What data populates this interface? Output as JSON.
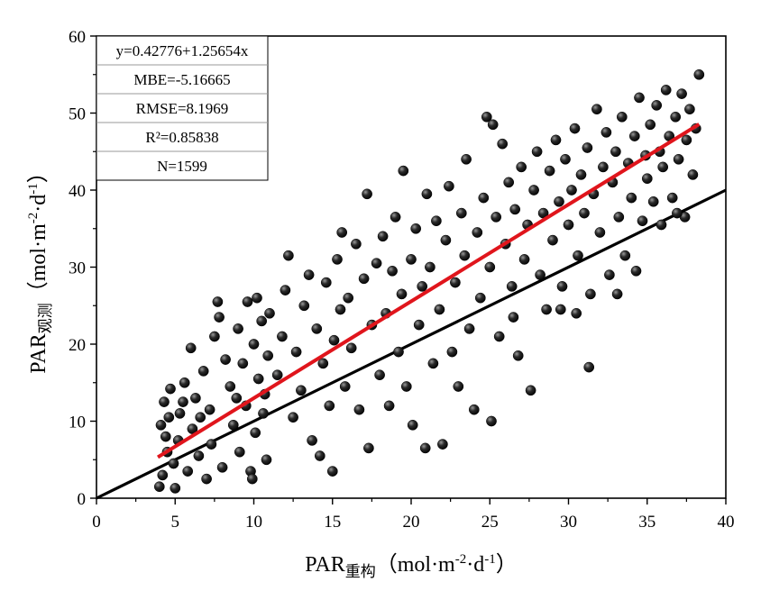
{
  "chart_data": {
    "type": "scatter",
    "title": "",
    "xlabel": {
      "main": "PAR",
      "subscript": "重构",
      "unit_open": "（mol·m",
      "unit_exp1": "-2",
      "unit_mid": "·d",
      "unit_exp2": "-1",
      "unit_close": "）"
    },
    "ylabel": {
      "main": "PAR",
      "subscript": "观测",
      "unit_open": "（mol·m",
      "unit_exp1": "-2",
      "unit_mid": "·d",
      "unit_exp2": "-1",
      "unit_close": "）"
    },
    "xlim": [
      0,
      40
    ],
    "ylim": [
      0,
      60
    ],
    "xticks": [
      "0",
      "5",
      "10",
      "15",
      "20",
      "25",
      "30",
      "35",
      "40"
    ],
    "yticks": [
      "0",
      "10",
      "20",
      "30",
      "40",
      "50",
      "60"
    ],
    "grid": false,
    "stats_box": {
      "position": "top-left",
      "lines": [
        "y=0.42776+1.25654x",
        "MBE=-5.16665",
        "RMSE=8.1969",
        "R²=0.85838",
        "N=1599"
      ]
    },
    "fit_line": {
      "intercept": 0.42776,
      "slope": 1.25654,
      "x_range": [
        3.9,
        38.3
      ],
      "color": "#e0151c"
    },
    "reference_line": {
      "intercept": 0,
      "slope": 1,
      "x_range": [
        0,
        40
      ],
      "color": "#000000"
    },
    "point_color": "#1a1a1a",
    "points": [
      [
        4.0,
        1.5
      ],
      [
        4.2,
        3.0
      ],
      [
        4.5,
        6.0
      ],
      [
        4.1,
        9.5
      ],
      [
        4.3,
        12.5
      ],
      [
        4.7,
        14.2
      ],
      [
        4.4,
        8.0
      ],
      [
        4.9,
        4.5
      ],
      [
        5.0,
        1.3
      ],
      [
        5.3,
        11.0
      ],
      [
        5.6,
        15.0
      ],
      [
        5.2,
        7.5
      ],
      [
        5.8,
        3.5
      ],
      [
        6.0,
        19.5
      ],
      [
        6.3,
        13.0
      ],
      [
        6.1,
        9.0
      ],
      [
        6.5,
        5.5
      ],
      [
        6.8,
        16.5
      ],
      [
        7.0,
        2.5
      ],
      [
        7.2,
        11.5
      ],
      [
        7.5,
        21.0
      ],
      [
        7.7,
        25.5
      ],
      [
        7.8,
        23.5
      ],
      [
        7.3,
        7.0
      ],
      [
        8.0,
        4.0
      ],
      [
        8.2,
        18.0
      ],
      [
        8.5,
        14.5
      ],
      [
        8.7,
        9.5
      ],
      [
        9.0,
        22.0
      ],
      [
        9.1,
        6.0
      ],
      [
        9.3,
        17.5
      ],
      [
        9.5,
        12.0
      ],
      [
        9.6,
        25.5
      ],
      [
        9.8,
        3.5
      ],
      [
        10.0,
        20.0
      ],
      [
        10.1,
        8.5
      ],
      [
        10.3,
        15.5
      ],
      [
        10.5,
        23.0
      ],
      [
        10.6,
        11.0
      ],
      [
        10.8,
        5.0
      ],
      [
        10.9,
        18.5
      ],
      [
        10.7,
        13.5
      ],
      [
        10.2,
        26.0
      ],
      [
        9.9,
        2.5
      ],
      [
        8.9,
        13.0
      ],
      [
        6.6,
        10.5
      ],
      [
        5.5,
        12.5
      ],
      [
        4.6,
        10.5
      ],
      [
        11.0,
        24.0
      ],
      [
        11.5,
        16.0
      ],
      [
        11.8,
        21.0
      ],
      [
        12.0,
        27.0
      ],
      [
        12.2,
        31.5
      ],
      [
        12.5,
        10.5
      ],
      [
        12.7,
        19.0
      ],
      [
        13.0,
        14.0
      ],
      [
        13.2,
        25.0
      ],
      [
        13.5,
        29.0
      ],
      [
        13.7,
        7.5
      ],
      [
        14.0,
        22.0
      ],
      [
        14.2,
        5.5
      ],
      [
        14.4,
        17.5
      ],
      [
        14.6,
        28.0
      ],
      [
        14.8,
        12.0
      ],
      [
        15.0,
        3.5
      ],
      [
        15.1,
        20.5
      ],
      [
        15.3,
        31.0
      ],
      [
        15.5,
        24.5
      ],
      [
        15.6,
        34.5
      ],
      [
        15.8,
        14.5
      ],
      [
        16.0,
        26.0
      ],
      [
        16.2,
        19.5
      ],
      [
        16.5,
        33.0
      ],
      [
        16.7,
        11.5
      ],
      [
        17.0,
        28.5
      ],
      [
        17.2,
        39.5
      ],
      [
        17.3,
        6.5
      ],
      [
        17.5,
        22.5
      ],
      [
        17.8,
        30.5
      ],
      [
        18.0,
        16.0
      ],
      [
        18.2,
        34.0
      ],
      [
        18.4,
        24.0
      ],
      [
        18.6,
        12.0
      ],
      [
        18.8,
        29.5
      ],
      [
        19.0,
        36.5
      ],
      [
        19.2,
        19.0
      ],
      [
        19.4,
        26.5
      ],
      [
        19.5,
        42.5
      ],
      [
        19.7,
        14.5
      ],
      [
        20.0,
        31.0
      ],
      [
        20.1,
        9.5
      ],
      [
        20.3,
        35.0
      ],
      [
        20.5,
        22.5
      ],
      [
        20.7,
        27.5
      ],
      [
        20.9,
        6.5
      ],
      [
        21.0,
        39.5
      ],
      [
        21.2,
        30.0
      ],
      [
        21.4,
        17.5
      ],
      [
        21.6,
        36.0
      ],
      [
        21.8,
        24.5
      ],
      [
        22.0,
        7.0
      ],
      [
        22.2,
        33.5
      ],
      [
        22.4,
        40.5
      ],
      [
        22.6,
        19.0
      ],
      [
        22.8,
        28.0
      ],
      [
        23.0,
        14.5
      ],
      [
        23.2,
        37.0
      ],
      [
        23.4,
        31.5
      ],
      [
        23.5,
        44.0
      ],
      [
        23.7,
        22.0
      ],
      [
        24.0,
        11.5
      ],
      [
        24.2,
        34.5
      ],
      [
        24.4,
        26.0
      ],
      [
        24.6,
        39.0
      ],
      [
        24.8,
        49.5
      ],
      [
        25.0,
        30.0
      ],
      [
        25.1,
        10.0
      ],
      [
        25.2,
        48.5
      ],
      [
        25.4,
        36.5
      ],
      [
        25.6,
        21.0
      ],
      [
        25.8,
        46.0
      ],
      [
        26.0,
        33.0
      ],
      [
        26.2,
        41.0
      ],
      [
        26.4,
        27.5
      ],
      [
        26.6,
        37.5
      ],
      [
        26.8,
        18.5
      ],
      [
        27.0,
        43.0
      ],
      [
        27.2,
        31.0
      ],
      [
        27.4,
        35.5
      ],
      [
        27.6,
        14.0
      ],
      [
        27.8,
        40.0
      ],
      [
        28.0,
        45.0
      ],
      [
        28.2,
        29.0
      ],
      [
        28.4,
        37.0
      ],
      [
        28.6,
        24.5
      ],
      [
        28.8,
        42.5
      ],
      [
        29.0,
        33.5
      ],
      [
        29.2,
        46.5
      ],
      [
        29.4,
        38.5
      ],
      [
        29.6,
        27.5
      ],
      [
        29.8,
        44.0
      ],
      [
        30.0,
        35.5
      ],
      [
        30.2,
        40.0
      ],
      [
        30.4,
        48.0
      ],
      [
        30.6,
        31.5
      ],
      [
        30.8,
        42.0
      ],
      [
        31.0,
        37.0
      ],
      [
        31.2,
        45.5
      ],
      [
        31.3,
        17.0
      ],
      [
        31.4,
        26.5
      ],
      [
        31.6,
        39.5
      ],
      [
        31.8,
        50.5
      ],
      [
        32.0,
        34.5
      ],
      [
        32.2,
        43.0
      ],
      [
        32.4,
        47.5
      ],
      [
        32.6,
        29.0
      ],
      [
        32.8,
        41.0
      ],
      [
        33.0,
        45.0
      ],
      [
        33.2,
        36.5
      ],
      [
        33.4,
        49.5
      ],
      [
        33.6,
        31.5
      ],
      [
        33.8,
        43.5
      ],
      [
        34.0,
        39.0
      ],
      [
        34.2,
        47.0
      ],
      [
        34.3,
        29.5
      ],
      [
        34.5,
        52.0
      ],
      [
        34.7,
        36.0
      ],
      [
        34.9,
        44.5
      ],
      [
        35.0,
        41.5
      ],
      [
        35.2,
        48.5
      ],
      [
        35.4,
        38.5
      ],
      [
        35.6,
        51.0
      ],
      [
        35.8,
        45.0
      ],
      [
        36.0,
        43.0
      ],
      [
        36.2,
        53.0
      ],
      [
        36.4,
        47.0
      ],
      [
        36.6,
        39.0
      ],
      [
        36.8,
        49.5
      ],
      [
        37.0,
        44.0
      ],
      [
        37.2,
        52.5
      ],
      [
        37.4,
        36.5
      ],
      [
        37.5,
        46.5
      ],
      [
        37.7,
        50.5
      ],
      [
        37.9,
        42.0
      ],
      [
        38.1,
        48.0
      ],
      [
        38.3,
        55.0
      ],
      [
        36.9,
        37.0
      ],
      [
        35.9,
        35.5
      ],
      [
        33.1,
        26.5
      ],
      [
        30.5,
        24.0
      ],
      [
        29.5,
        24.5
      ],
      [
        26.5,
        23.5
      ]
    ]
  }
}
